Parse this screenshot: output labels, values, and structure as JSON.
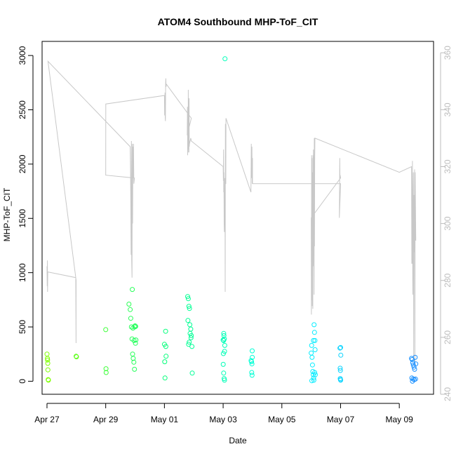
{
  "chart_data": {
    "type": "scatter",
    "title": "ATOM4 Southbound MHP-ToF_CIT",
    "xlabel": "Date",
    "ylabel": "MHP-ToF_CIT",
    "x_axis": {
      "type": "date",
      "range": [
        "2016-04-26T20:00",
        "2016-05-10T04:00"
      ],
      "ticks": [
        {
          "date": "2016-04-27",
          "label": "Apr 27"
        },
        {
          "date": "2016-04-29",
          "label": "Apr 29"
        },
        {
          "date": "2016-05-01",
          "label": "May 01"
        },
        {
          "date": "2016-05-03",
          "label": "May 03"
        },
        {
          "date": "2016-05-05",
          "label": "May 05"
        },
        {
          "date": "2016-05-07",
          "label": "May 07"
        },
        {
          "date": "2016-05-09",
          "label": "May 09"
        }
      ]
    },
    "y_axis": {
      "range": [
        -120,
        3130
      ],
      "ticks": [
        0,
        500,
        1000,
        1500,
        2000,
        2500,
        3000
      ]
    },
    "y2_axis": {
      "range": [
        240,
        364
      ],
      "ticks": [
        240,
        260,
        280,
        300,
        320,
        340,
        360
      ],
      "color": "#bdbdbd"
    },
    "grid": false,
    "legend": "none",
    "colors": {
      "secondary_line": "#c8c8c8",
      "point_gradient": [
        "#7fff00",
        "#00ff80",
        "#00ffff",
        "#1e90ff"
      ]
    },
    "series": [
      {
        "type": "scatter",
        "axis": "left",
        "points": [
          [
            "2016-04-27T00:00",
            250
          ],
          [
            "2016-04-27T00:20",
            210
          ],
          [
            "2016-04-27T00:30",
            195
          ],
          [
            "2016-04-27T00:40",
            165
          ],
          [
            "2016-04-27T00:45",
            105
          ],
          [
            "2016-04-27T01:00",
            15
          ],
          [
            "2016-04-27T01:10",
            10
          ],
          [
            "2016-04-27T23:50",
            230
          ],
          [
            "2016-04-28T00:05",
            225
          ],
          [
            "2016-04-29T00:00",
            475
          ],
          [
            "2016-04-29T00:15",
            115
          ],
          [
            "2016-04-29T00:20",
            80
          ],
          [
            "2016-04-29T19:00",
            710
          ],
          [
            "2016-04-29T20:00",
            660
          ],
          [
            "2016-04-29T20:30",
            580
          ],
          [
            "2016-04-29T21:00",
            500
          ],
          [
            "2016-04-29T21:30",
            390
          ],
          [
            "2016-04-29T22:00",
            250
          ],
          [
            "2016-04-29T22:30",
            210
          ],
          [
            "2016-04-29T23:00",
            175
          ],
          [
            "2016-04-29T23:30",
            110
          ],
          [
            "2016-04-29T21:45",
            845
          ],
          [
            "2016-04-29T22:15",
            490
          ],
          [
            "2016-04-29T23:10",
            375
          ],
          [
            "2016-04-30T00:00",
            510
          ],
          [
            "2016-04-30T00:20",
            350
          ],
          [
            "2016-04-30T00:40",
            380
          ],
          [
            "2016-04-29T23:45",
            500
          ],
          [
            "2016-04-30T00:30",
            505
          ],
          [
            "2016-05-01T00:00",
            340
          ],
          [
            "2016-05-01T00:15",
            180
          ],
          [
            "2016-05-01T00:30",
            30
          ],
          [
            "2016-05-01T01:00",
            460
          ],
          [
            "2016-05-01T01:10",
            320
          ],
          [
            "2016-05-01T01:20",
            230
          ],
          [
            "2016-05-01T19:00",
            780
          ],
          [
            "2016-05-01T19:30",
            760
          ],
          [
            "2016-05-01T20:00",
            690
          ],
          [
            "2016-05-01T20:30",
            670
          ],
          [
            "2016-05-01T19:15",
            560
          ],
          [
            "2016-05-01T20:45",
            520
          ],
          [
            "2016-05-01T21:30",
            480
          ],
          [
            "2016-05-01T21:00",
            440
          ],
          [
            "2016-05-01T21:45",
            400
          ],
          [
            "2016-05-01T20:15",
            360
          ],
          [
            "2016-05-01T22:00",
            420
          ],
          [
            "2016-05-01T19:45",
            340
          ],
          [
            "2016-05-01T22:30",
            320
          ],
          [
            "2016-05-01T22:45",
            75
          ],
          [
            "2016-05-03T00:00",
            380
          ],
          [
            "2016-05-03T00:20",
            375
          ],
          [
            "2016-05-03T00:30",
            440
          ],
          [
            "2016-05-03T00:40",
            420
          ],
          [
            "2016-05-03T01:00",
            390
          ],
          [
            "2016-05-03T01:20",
            330
          ],
          [
            "2016-05-03T01:10",
            275
          ],
          [
            "2016-05-03T00:10",
            255
          ],
          [
            "2016-05-03T00:05",
            155
          ],
          [
            "2016-05-03T00:25",
            75
          ],
          [
            "2016-05-03T00:50",
            25
          ],
          [
            "2016-05-03T01:05",
            10
          ],
          [
            "2016-05-03T01:30",
            2970
          ],
          [
            "2016-05-03T22:50",
            190
          ],
          [
            "2016-05-03T23:10",
            180
          ],
          [
            "2016-05-03T23:30",
            160
          ],
          [
            "2016-05-03T23:45",
            280
          ],
          [
            "2016-05-03T23:50",
            220
          ],
          [
            "2016-05-03T23:20",
            80
          ],
          [
            "2016-05-03T23:40",
            55
          ],
          [
            "2016-05-06T00:00",
            260
          ],
          [
            "2016-05-06T00:20",
            330
          ],
          [
            "2016-05-06T00:40",
            220
          ],
          [
            "2016-05-06T01:00",
            150
          ],
          [
            "2016-05-06T01:20",
            90
          ],
          [
            "2016-05-06T01:40",
            60
          ],
          [
            "2016-05-06T02:00",
            30
          ],
          [
            "2016-05-06T02:10",
            10
          ],
          [
            "2016-05-06T01:50",
            375
          ],
          [
            "2016-05-06T02:20",
            520
          ],
          [
            "2016-05-06T02:40",
            450
          ],
          [
            "2016-05-06T03:00",
            375
          ],
          [
            "2016-05-06T03:10",
            290
          ],
          [
            "2016-05-06T02:50",
            80
          ],
          [
            "2016-05-06T03:20",
            60
          ],
          [
            "2016-05-06T00:30",
            5
          ],
          [
            "2016-05-06T23:30",
            305
          ],
          [
            "2016-05-06T23:40",
            120
          ],
          [
            "2016-05-06T23:50",
            100
          ],
          [
            "2016-05-07T00:00",
            310
          ],
          [
            "2016-05-07T00:10",
            240
          ],
          [
            "2016-05-06T23:45",
            25
          ],
          [
            "2016-05-06T23:55",
            15
          ],
          [
            "2016-05-07T00:05",
            10
          ],
          [
            "2016-05-09T10:00",
            210
          ],
          [
            "2016-05-09T10:30",
            200
          ],
          [
            "2016-05-09T11:00",
            170
          ],
          [
            "2016-05-09T11:30",
            150
          ],
          [
            "2016-05-09T12:00",
            130
          ],
          [
            "2016-05-09T12:30",
            110
          ],
          [
            "2016-05-09T13:00",
            220
          ],
          [
            "2016-05-09T13:30",
            160
          ],
          [
            "2016-05-09T10:15",
            30
          ],
          [
            "2016-05-09T11:15",
            20
          ],
          [
            "2016-05-09T12:15",
            15
          ],
          [
            "2016-05-09T13:15",
            20
          ],
          [
            "2016-05-09T10:45",
            0
          ]
        ]
      },
      {
        "type": "line",
        "axis": "right",
        "points": [
          [
            "2016-04-27T00:00",
            285
          ],
          [
            "2016-04-27T00:10",
            278
          ],
          [
            "2016-04-27T00:20",
            287
          ],
          [
            "2016-04-27T00:30",
            276
          ],
          [
            "2016-04-27T00:40",
            283
          ],
          [
            "2016-04-27T23:30",
            281
          ],
          [
            "2016-04-27T23:45",
            258
          ],
          [
            "2016-04-27T23:50",
            280
          ],
          [
            "2016-04-27T00:50",
            357
          ],
          [
            "2016-04-29T20:00",
            327
          ],
          [
            "2016-04-29T20:15",
            320
          ],
          [
            "2016-04-29T20:30",
            308
          ],
          [
            "2016-04-29T20:45",
            289
          ],
          [
            "2016-04-29T21:00",
            329
          ],
          [
            "2016-04-29T21:15",
            287
          ],
          [
            "2016-04-29T21:30",
            281
          ],
          [
            "2016-04-29T21:45",
            328
          ],
          [
            "2016-04-29T22:00",
            300
          ],
          [
            "2016-04-29T22:15",
            327
          ],
          [
            "2016-04-29T22:30",
            316
          ],
          [
            "2016-04-29T22:45",
            328
          ],
          [
            "2016-04-29T23:00",
            314
          ],
          [
            "2016-04-29T23:30",
            316
          ],
          [
            "2016-04-29T00:00",
            317
          ],
          [
            "2016-04-29T00:05",
            342
          ],
          [
            "2016-05-01T00:00",
            345
          ],
          [
            "2016-05-01T00:10",
            338
          ],
          [
            "2016-05-01T00:20",
            339
          ],
          [
            "2016-05-01T00:30",
            346
          ],
          [
            "2016-05-01T00:40",
            337
          ],
          [
            "2016-05-01T00:50",
            336
          ],
          [
            "2016-05-01T01:00",
            349
          ],
          [
            "2016-05-01T01:10",
            351
          ],
          [
            "2016-05-01T01:20",
            348
          ],
          [
            "2016-05-01T01:30",
            349
          ],
          [
            "2016-05-01T22:00",
            337
          ],
          [
            "2016-05-01T18:40",
            331
          ],
          [
            "2016-05-01T18:50",
            341
          ],
          [
            "2016-05-01T19:00",
            324
          ],
          [
            "2016-05-01T19:10",
            339
          ],
          [
            "2016-05-01T19:20",
            326
          ],
          [
            "2016-05-01T19:30",
            347
          ],
          [
            "2016-05-01T19:40",
            325
          ],
          [
            "2016-05-01T19:50",
            343
          ],
          [
            "2016-05-01T20:00",
            325
          ],
          [
            "2016-05-01T20:10",
            344
          ],
          [
            "2016-05-01T20:20",
            327
          ],
          [
            "2016-05-01T20:30",
            328
          ],
          [
            "2016-05-01T21:00",
            329
          ],
          [
            "2016-05-01T21:30",
            330
          ],
          [
            "2016-05-01T22:00",
            329
          ],
          [
            "2016-05-03T00:00",
            320
          ],
          [
            "2016-05-03T00:10",
            315
          ],
          [
            "2016-05-03T00:20",
            326
          ],
          [
            "2016-05-03T00:30",
            311
          ],
          [
            "2016-05-03T00:40",
            318
          ],
          [
            "2016-05-03T00:50",
            300
          ],
          [
            "2016-05-03T01:00",
            297
          ],
          [
            "2016-05-03T01:10",
            303
          ],
          [
            "2016-05-03T01:20",
            316
          ],
          [
            "2016-05-03T01:30",
            315
          ],
          [
            "2016-05-03T01:40",
            276
          ],
          [
            "2016-05-03T01:50",
            335
          ],
          [
            "2016-05-03T02:00",
            314
          ],
          [
            "2016-05-03T02:10",
            314
          ],
          [
            "2016-05-03T02:20",
            337
          ],
          [
            "2016-05-03T22:45",
            311
          ],
          [
            "2016-05-03T23:00",
            328
          ],
          [
            "2016-05-03T23:15",
            316
          ],
          [
            "2016-05-03T23:30",
            327
          ],
          [
            "2016-05-03T23:45",
            314
          ],
          [
            "2016-05-04T00:00",
            323
          ],
          [
            "2016-05-04T00:00",
            314
          ],
          [
            "2016-05-07T00:00",
            314
          ],
          [
            "2016-05-06T23:00",
            302
          ],
          [
            "2016-05-06T23:10",
            310
          ],
          [
            "2016-05-06T23:20",
            323
          ],
          [
            "2016-05-06T23:30",
            316
          ],
          [
            "2016-05-06T23:40",
            317
          ],
          [
            "2016-05-07T00:00",
            316
          ],
          [
            "2016-05-06T00:00",
            302
          ],
          [
            "2016-05-06T00:10",
            268
          ],
          [
            "2016-05-06T00:20",
            324
          ],
          [
            "2016-05-06T00:30",
            273
          ],
          [
            "2016-05-06T00:40",
            323
          ],
          [
            "2016-05-06T00:50",
            271
          ],
          [
            "2016-05-06T01:00",
            318
          ],
          [
            "2016-05-06T01:10",
            300
          ],
          [
            "2016-05-06T01:20",
            270
          ],
          [
            "2016-05-06T01:30",
            324
          ],
          [
            "2016-05-06T01:40",
            285
          ],
          [
            "2016-05-06T01:50",
            326
          ],
          [
            "2016-05-06T02:00",
            320
          ],
          [
            "2016-05-06T02:10",
            300
          ],
          [
            "2016-05-06T02:20",
            275
          ],
          [
            "2016-05-06T02:30",
            330
          ],
          [
            "2016-05-06T02:40",
            292
          ],
          [
            "2016-05-06T02:50",
            322
          ],
          [
            "2016-05-06T03:00",
            330
          ],
          [
            "2016-05-09T00:00",
            318
          ],
          [
            "2016-05-09T10:00",
            320
          ],
          [
            "2016-05-09T10:15",
            286
          ],
          [
            "2016-05-09T10:30",
            286
          ],
          [
            "2016-05-09T10:45",
            322
          ],
          [
            "2016-05-09T11:00",
            275
          ],
          [
            "2016-05-09T11:15",
            305
          ],
          [
            "2016-05-09T11:30",
            318
          ],
          [
            "2016-05-09T11:45",
            252
          ],
          [
            "2016-05-09T12:00",
            310
          ],
          [
            "2016-05-09T12:15",
            290
          ],
          [
            "2016-05-09T12:30",
            319
          ],
          [
            "2016-05-09T12:45",
            250
          ],
          [
            "2016-05-09T13:00",
            318
          ],
          [
            "2016-05-09T13:30",
            294
          ]
        ]
      }
    ]
  }
}
